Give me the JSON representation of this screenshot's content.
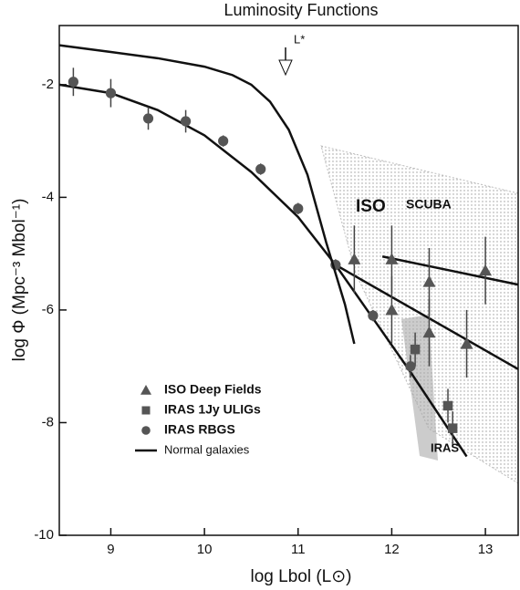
{
  "chart_data": {
    "type": "scatter",
    "title": "Luminosity Functions",
    "x_label": "log Lbol  (L⊙)",
    "y_label": "log Φ  (Mpc⁻³ Mbol⁻¹)",
    "xlim": [
      8.45,
      13.35
    ],
    "ylim": [
      -10,
      -0.95
    ],
    "xticks": [
      9,
      10,
      11,
      12,
      13
    ],
    "yticks": [
      -10,
      -8,
      -6,
      -4,
      -2
    ],
    "annotations": [
      "L*",
      "ISO",
      "SCUBA",
      "IRAS"
    ],
    "series": [
      {
        "name": "ISO Deep Fields",
        "marker": "triangle",
        "color": "#555",
        "x": [
          11.6,
          12.0,
          12.4,
          13.0,
          12.0,
          12.4,
          12.8
        ],
        "values": [
          -5.1,
          -5.1,
          -5.5,
          -5.3,
          -6.0,
          -6.4,
          -6.6
        ],
        "errors": [
          0.6,
          0.6,
          0.6,
          0.6,
          0.6,
          0.6,
          0.6
        ]
      },
      {
        "name": "IRAS 1Jy ULIGs",
        "marker": "square",
        "color": "#555",
        "x": [
          12.25,
          12.6,
          12.65
        ],
        "values": [
          -6.7,
          -7.7,
          -8.1
        ],
        "errors": [
          0.3,
          0.3,
          0.3
        ]
      },
      {
        "name": "IRAS RBGS",
        "marker": "circle",
        "color": "#555",
        "x": [
          8.6,
          9.0,
          9.4,
          9.8,
          10.2,
          10.6,
          11.0,
          11.4,
          11.8,
          12.2
        ],
        "values": [
          -1.95,
          -2.15,
          -2.6,
          -2.65,
          -3.0,
          -3.5,
          -4.2,
          -5.2,
          -6.1,
          -7.0
        ],
        "errors": [
          0.25,
          0.25,
          0.2,
          0.2,
          0.1,
          0.1,
          0.1,
          0.1,
          0.1,
          0.2
        ]
      },
      {
        "name": "Normal galaxies",
        "marker": "line",
        "color": "#111",
        "x": [
          8.45,
          9.0,
          9.5,
          10.0,
          10.3,
          10.5,
          10.7,
          10.9,
          11.1,
          11.3,
          11.5,
          11.6
        ],
        "values": [
          -1.3,
          -1.42,
          -1.53,
          -1.68,
          -1.83,
          -2.0,
          -2.3,
          -2.8,
          -3.6,
          -4.8,
          -5.9,
          -6.6
        ]
      }
    ],
    "lines": [
      {
        "color": "#111",
        "x": [
          8.45,
          9.0,
          9.5,
          10.0,
          10.5,
          11.0,
          11.4,
          11.8,
          12.2,
          12.6,
          12.8
        ],
        "values": [
          -2.0,
          -2.15,
          -2.45,
          -2.9,
          -3.55,
          -4.35,
          -5.2,
          -6.15,
          -7.1,
          -8.1,
          -8.6
        ]
      },
      {
        "color": "#111",
        "x": [
          11.4,
          13.35
        ],
        "values": [
          -5.2,
          -7.05
        ]
      },
      {
        "color": "#111",
        "x": [
          11.9,
          13.35
        ],
        "values": [
          -5.05,
          -5.55
        ]
      }
    ]
  }
}
